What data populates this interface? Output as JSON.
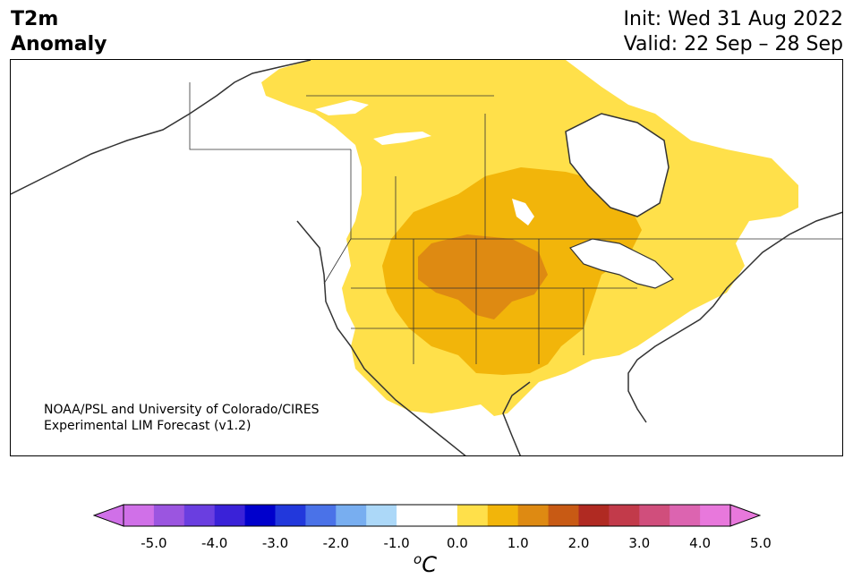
{
  "header": {
    "title_line1": "T2m",
    "title_line2": "Anomaly",
    "init_text": "Init: Wed 31 Aug 2022",
    "valid_text": "Valid: 22 Sep – 28 Sep"
  },
  "credit": {
    "line1": "NOAA/PSL and University of Colorado/CIRES",
    "line2": "Experimental LIM Forecast (v1.2)"
  },
  "colorbar": {
    "unit_base": "C",
    "unit_prefix": "o",
    "ticks": [
      "-5.0",
      "-4.0",
      "-3.0",
      "-2.0",
      "-1.0",
      "0.0",
      "1.0",
      "2.0",
      "3.0",
      "4.0",
      "5.0"
    ],
    "colors": [
      "#d070e8",
      "#9b55e0",
      "#6a3ee0",
      "#3a22d8",
      "#0000cc",
      "#2238dc",
      "#4a72e8",
      "#78aef0",
      "#acd8f8",
      "#ffffff",
      "#ffffff",
      "#ffe04a",
      "#f2b50a",
      "#de8a12",
      "#c85a14",
      "#b02a22",
      "#c23a4a",
      "#d04e7c",
      "#dc64b0",
      "#e878dc"
    ],
    "min_color": "#d070e8",
    "max_color": "#e878dc"
  },
  "map_colors": {
    "anom_0_5_1_0": "#ffe04a",
    "anom_1_0_1_5": "#f2b50a",
    "anom_1_5_2_0": "#de8a12",
    "outline": "#333333"
  }
}
